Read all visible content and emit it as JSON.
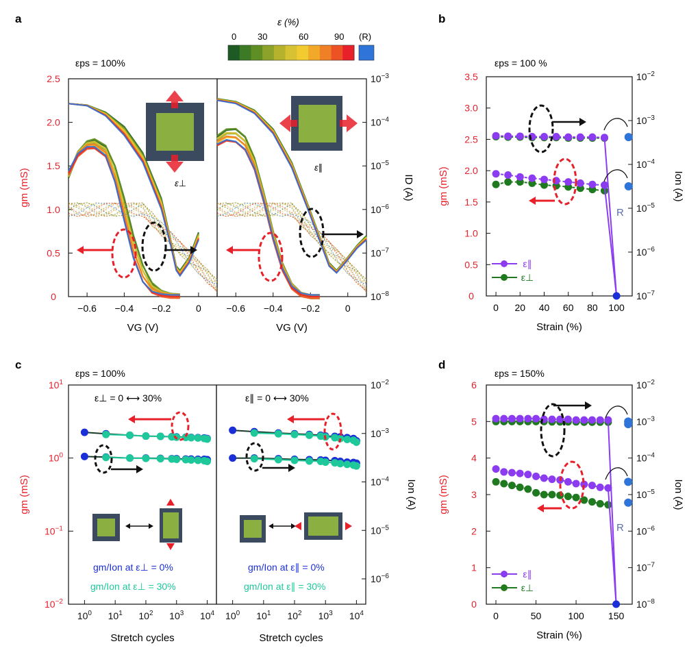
{
  "colors": {
    "red": "#e8202a",
    "black": "#111111",
    "purple": "#8c3cf0",
    "green": "#1f7a1f",
    "blue": "#1a2fd8",
    "teal": "#1ec89a",
    "reference": "#2f74d8",
    "steel": "#5a6fae"
  },
  "colorbar": {
    "title": "ε (%)",
    "ticks": [
      "0",
      "30",
      "60",
      "90",
      "(R)"
    ],
    "colors": [
      "#1e5a23",
      "#3c7a26",
      "#5f8f24",
      "#8ca22a",
      "#b5b32e",
      "#d7c233",
      "#f1cb30",
      "#f2a92a",
      "#f08025",
      "#ec5224",
      "#e8202a"
    ],
    "reference_color": "#2f74d8"
  },
  "panels": {
    "a": {
      "label": "a",
      "eps_ps": "εps = 100%",
      "sub_left": "ε⊥",
      "sub_right": "ε∥"
    },
    "b": {
      "label": "b",
      "eps_ps": "εps = 100 %",
      "r_label": "R"
    },
    "c": {
      "label": "c",
      "eps_ps": "εps = 100%",
      "left_title": "ε⊥ = 0  ⟷  30%",
      "right_title": "ε∥ = 0  ⟷  30%",
      "left_legend": [
        "gm/Ion at ε⊥ = 0%",
        "gm/Ion at ε⊥ = 30%"
      ],
      "right_legend": [
        "gm/Ion at ε∥ = 0%",
        "gm/Ion at ε∥ = 30%"
      ]
    },
    "d": {
      "label": "d",
      "eps_ps": "εps = 150%",
      "r_label": "R"
    }
  },
  "chart_data": [
    {
      "id": "a-left",
      "type": "line",
      "title": "εps = 100%, strain ε⊥",
      "xlabel": "VG (V)",
      "ylabel": "gm (mS)",
      "y2label": "ID (A)",
      "xlim": [
        -0.7,
        0.1
      ],
      "ylim": [
        0,
        2.5
      ],
      "y2lim": [
        1e-08,
        0.001
      ],
      "y2scale": "log",
      "xticks": [
        "−0.6",
        "−0.4",
        "−0.2",
        "0"
      ],
      "yticks": [
        "0",
        "0.5",
        "1.0",
        "1.5",
        "2.0",
        "2.5"
      ],
      "y2ticks": [
        "10−8",
        "10−7",
        "10−6",
        "10−5",
        "10−4",
        "10−3"
      ],
      "series": [
        {
          "name": "gm ε=0%",
          "x": [
            -0.7,
            -0.65,
            -0.6,
            -0.56,
            -0.5,
            -0.45,
            -0.4,
            -0.35,
            -0.3,
            -0.25,
            -0.2,
            -0.15,
            -0.1
          ],
          "values": [
            1.38,
            1.65,
            1.78,
            1.81,
            1.74,
            1.52,
            1.15,
            0.72,
            0.38,
            0.16,
            0.06,
            0.02,
            0.01
          ]
        },
        {
          "name": "gm ε=90%",
          "x": [
            -0.7,
            -0.65,
            -0.6,
            -0.56,
            -0.5,
            -0.45,
            -0.4,
            -0.35,
            -0.3,
            -0.25,
            -0.2,
            -0.15,
            -0.1
          ],
          "values": [
            1.42,
            1.62,
            1.7,
            1.7,
            1.6,
            1.3,
            0.85,
            0.42,
            0.15,
            0.04,
            0.01,
            0.0,
            0.0
          ]
        },
        {
          "name": "ID ε=0% (A)",
          "x": [
            -0.7,
            -0.6,
            -0.5,
            -0.4,
            -0.3,
            -0.2,
            -0.15,
            -0.12,
            -0.1,
            -0.05,
            0.0
          ],
          "values": [
            0.00027,
            0.00025,
            0.00017,
            8e-05,
            2e-05,
            1.8e-06,
            2e-07,
            5e-08,
            4e-08,
            8e-08,
            3e-07
          ]
        },
        {
          "name": "ID ε=90% (A)",
          "x": [
            -0.7,
            -0.6,
            -0.5,
            -0.4,
            -0.3,
            -0.2,
            -0.15,
            -0.12,
            -0.1,
            -0.05,
            0.0
          ],
          "values": [
            0.00027,
            0.00024,
            0.00014,
            5e-05,
            1.2e-05,
            1e-06,
            1.5e-07,
            4e-08,
            3e-08,
            6e-08,
            2e-07
          ]
        }
      ]
    },
    {
      "id": "a-right",
      "type": "line",
      "title": "εps = 100%, strain ε∥",
      "xlabel": "VG (V)",
      "ylabel": "gm (mS)",
      "y2label": "ID (A)",
      "xlim": [
        -0.7,
        0.1
      ],
      "ylim": [
        0,
        2.5
      ],
      "y2lim": [
        1e-08,
        0.001
      ],
      "y2scale": "log",
      "xticks": [
        "−0.6",
        "−0.4",
        "−0.2",
        "0"
      ],
      "series": [
        {
          "name": "gm ε=0%",
          "x": [
            -0.7,
            -0.65,
            -0.6,
            -0.55,
            -0.5,
            -0.45,
            -0.4,
            -0.35,
            -0.3,
            -0.25,
            -0.2,
            -0.15
          ],
          "values": [
            1.85,
            1.93,
            1.94,
            1.85,
            1.6,
            1.2,
            0.75,
            0.38,
            0.14,
            0.03,
            0.0,
            0.0
          ]
        },
        {
          "name": "gm ε=90%",
          "x": [
            -0.7,
            -0.65,
            -0.6,
            -0.55,
            -0.5,
            -0.45,
            -0.4,
            -0.35,
            -0.3,
            -0.25,
            -0.2,
            -0.15
          ],
          "values": [
            1.73,
            1.78,
            1.76,
            1.67,
            1.45,
            1.08,
            0.65,
            0.3,
            0.1,
            0.02,
            0.0,
            0.0
          ]
        },
        {
          "name": "ID ε=0% (A)",
          "x": [
            -0.7,
            -0.6,
            -0.5,
            -0.4,
            -0.3,
            -0.2,
            -0.1,
            -0.06,
            0.0,
            0.05,
            0.1
          ],
          "values": [
            0.00035,
            0.0003,
            0.00019,
            7e-05,
            1.2e-05,
            9e-07,
            6e-08,
            4e-08,
            8e-08,
            1.5e-07,
            2.5e-07
          ]
        },
        {
          "name": "ID ε=90% (A)",
          "x": [
            -0.7,
            -0.6,
            -0.5,
            -0.4,
            -0.3,
            -0.2,
            -0.1,
            -0.06,
            0.0,
            0.05,
            0.1
          ],
          "values": [
            0.00032,
            0.00027,
            0.00016,
            5.5e-05,
            9e-06,
            7e-07,
            5e-08,
            3.5e-08,
            7e-08,
            1.3e-07,
            2e-07
          ]
        }
      ]
    },
    {
      "id": "b",
      "type": "scatter",
      "title": "εps = 100 %",
      "xlabel": "Strain (%)",
      "ylabel": "gm (mS)",
      "y2label": "Ion (A)",
      "xlim": [
        -8,
        113
      ],
      "ylim": [
        0,
        3.5
      ],
      "y2lim": [
        1e-07,
        0.01
      ],
      "y2scale": "log",
      "xticks": [
        "0",
        "20",
        "40",
        "60",
        "80",
        "100"
      ],
      "yticks": [
        "0",
        "0.5",
        "1.0",
        "1.5",
        "2.0",
        "2.5",
        "3.0",
        "3.5"
      ],
      "y2ticks": [
        "10−7",
        "10−6",
        "10−5",
        "10−4",
        "10−3",
        "10−2"
      ],
      "legend": [
        "ε∥",
        "ε⊥"
      ],
      "x": [
        0,
        10,
        20,
        30,
        40,
        50,
        60,
        70,
        80,
        90
      ],
      "series": [
        {
          "name": "gm ε∥ (mS)",
          "values": [
            1.95,
            1.93,
            1.9,
            1.88,
            1.86,
            1.84,
            1.82,
            1.8,
            1.78,
            1.77
          ],
          "R": 1.75
        },
        {
          "name": "gm ε⊥ (mS)",
          "values": [
            1.78,
            1.82,
            1.82,
            1.8,
            1.77,
            1.76,
            1.74,
            1.72,
            1.7,
            1.68
          ],
          "R": 1.75
        },
        {
          "name": "Ion ε∥ (A)",
          "values": [
            0.00045,
            0.00044,
            0.00044,
            0.00043,
            0.00043,
            0.00043,
            0.00042,
            0.00042,
            0.00042,
            0.00041
          ],
          "R": 0.00042
        },
        {
          "name": "Ion ε⊥ (A)",
          "values": [
            0.00043,
            0.00042,
            0.00042,
            0.00041,
            0.00041,
            0.00041,
            0.0004,
            0.0004,
            0.0004,
            0.0004
          ],
          "R": 0.00042
        }
      ],
      "failure_point": {
        "x": 100,
        "gm": 0
      }
    },
    {
      "id": "c-left",
      "type": "scatter",
      "title": "ε⊥ = 0 ⟷ 30%",
      "xlabel": "Stretch cycles",
      "ylabel": "gm (mS)",
      "y2label": "Ion (A)",
      "xscale": "log",
      "xlim": [
        0.3,
        20000
      ],
      "ylim": [
        0.01,
        10
      ],
      "yscale": "log",
      "xticks": [
        "10^0",
        "10^1",
        "10^2",
        "10^3",
        "10^4"
      ],
      "yticks": [
        "10−2",
        "10−1",
        "100",
        "101"
      ],
      "legend": [
        "gm/Ion at ε⊥ = 0%",
        "gm/Ion at ε⊥ = 30%"
      ],
      "x": [
        1,
        5,
        30,
        100,
        300,
        700,
        1000,
        2000,
        3000,
        5000,
        8000,
        10000
      ],
      "series": [
        {
          "name": "gm ε⊥=0% (mS)",
          "values": [
            2.25,
            2.15,
            2.05,
            2.0,
            1.98,
            1.96,
            1.95,
            1.93,
            1.92,
            1.9,
            1.88,
            1.85
          ]
        },
        {
          "name": "gm ε⊥=30% (mS)",
          "values": [
            null,
            2.1,
            2.05,
            2.0,
            1.98,
            1.95,
            1.93,
            1.92,
            1.9,
            1.88,
            1.85,
            1.82
          ]
        },
        {
          "name": "Ion ε⊥=0% (A)",
          "values": [
            1.05,
            1.03,
            1.0,
            1.0,
            0.99,
            0.98,
            0.98,
            0.97,
            0.97,
            0.96,
            0.96,
            0.95
          ],
          "unit_note": "plotted on gm axis scale"
        },
        {
          "name": "Ion ε⊥=30% (A)",
          "values": [
            null,
            1.02,
            1.0,
            0.99,
            0.98,
            0.97,
            0.96,
            0.95,
            0.94,
            0.93,
            0.92,
            0.9
          ],
          "unit_note": "plotted on gm axis scale"
        }
      ]
    },
    {
      "id": "c-right",
      "type": "scatter",
      "title": "ε∥ = 0 ⟷ 30%",
      "xlabel": "Stretch cycles",
      "y2label": "Ion (A)",
      "xscale": "log",
      "xlim": [
        0.3,
        20000
      ],
      "y2lim": [
        3e-07,
        0.01
      ],
      "y2scale": "log",
      "xticks": [
        "10^0",
        "10^1",
        "10^2",
        "10^3",
        "10^4"
      ],
      "y2ticks": [
        "10−6",
        "10−5",
        "10−4",
        "10−3",
        "10−2"
      ],
      "legend": [
        "gm/Ion at ε∥ = 0%",
        "gm/Ion at ε∥ = 30%"
      ],
      "x": [
        1,
        5,
        30,
        100,
        300,
        700,
        1000,
        2000,
        3000,
        5000,
        8000,
        10000
      ],
      "series": [
        {
          "name": "gm ε∥=0% (mS)",
          "values": [
            2.4,
            2.3,
            2.2,
            2.15,
            2.1,
            2.05,
            2.0,
            1.98,
            1.95,
            1.9,
            1.85,
            1.72
          ]
        },
        {
          "name": "gm ε∥=30% (mS)",
          "values": [
            null,
            2.2,
            2.15,
            2.1,
            2.05,
            2.0,
            1.95,
            1.9,
            1.85,
            1.8,
            1.75,
            1.65
          ]
        },
        {
          "name": "Ion ε∥=0% (A)",
          "values": [
            1.0,
            1.0,
            0.98,
            0.96,
            0.95,
            0.94,
            0.93,
            0.92,
            0.9,
            0.88,
            0.87,
            0.85
          ],
          "unit_note": "plotted on gm axis scale"
        },
        {
          "name": "Ion ε∥=30% (A)",
          "values": [
            null,
            0.98,
            0.95,
            0.93,
            0.91,
            0.9,
            0.88,
            0.86,
            0.84,
            0.82,
            0.8,
            0.78
          ],
          "unit_note": "plotted on gm axis scale"
        }
      ]
    },
    {
      "id": "d",
      "type": "scatter",
      "title": "εps = 150%",
      "xlabel": "Strain (%)",
      "ylabel": "gm (mS)",
      "y2label": "Ion (A)",
      "xlim": [
        -12,
        170
      ],
      "ylim": [
        0,
        6
      ],
      "y2lim": [
        1e-08,
        0.01
      ],
      "y2scale": "log",
      "xticks": [
        "0",
        "50",
        "100",
        "150"
      ],
      "yticks": [
        "0",
        "1",
        "2",
        "3",
        "4",
        "5",
        "6"
      ],
      "y2ticks": [
        "10−8",
        "10−7",
        "10−6",
        "10−5",
        "10−4",
        "10−3",
        "10−2"
      ],
      "legend": [
        "ε∥",
        "ε⊥"
      ],
      "x": [
        0,
        10,
        20,
        30,
        40,
        50,
        60,
        70,
        80,
        90,
        100,
        110,
        120,
        130,
        140
      ],
      "series": [
        {
          "name": "gm ε∥ (mS)",
          "values": [
            3.7,
            3.62,
            3.6,
            3.58,
            3.55,
            3.5,
            3.45,
            3.42,
            3.4,
            3.35,
            3.3,
            3.28,
            3.25,
            3.2,
            3.18
          ],
          "R": 3.35
        },
        {
          "name": "gm ε⊥ (mS)",
          "values": [
            3.35,
            3.3,
            3.25,
            3.2,
            3.15,
            3.05,
            3.0,
            3.0,
            2.98,
            2.95,
            2.92,
            2.85,
            2.8,
            2.75,
            2.72
          ],
          "R": 2.78
        },
        {
          "name": "Ion ε∥ (A)",
          "values": [
            0.0012,
            0.0012,
            0.0012,
            0.0012,
            0.0012,
            0.0012,
            0.00115,
            0.00115,
            0.00115,
            0.00115,
            0.0011,
            0.0011,
            0.0011,
            0.0011,
            0.0011
          ],
          "R": 0.001
        },
        {
          "name": "Ion ε⊥ (A)",
          "values": [
            0.001,
            0.001,
            0.001,
            0.001,
            0.001,
            0.001,
            0.001,
            0.00098,
            0.00098,
            0.00098,
            0.00098,
            0.00096,
            0.00096,
            0.00096,
            0.00096
          ],
          "R": 0.00085
        }
      ],
      "failure_point": {
        "x": 150,
        "gm": 0
      }
    }
  ]
}
